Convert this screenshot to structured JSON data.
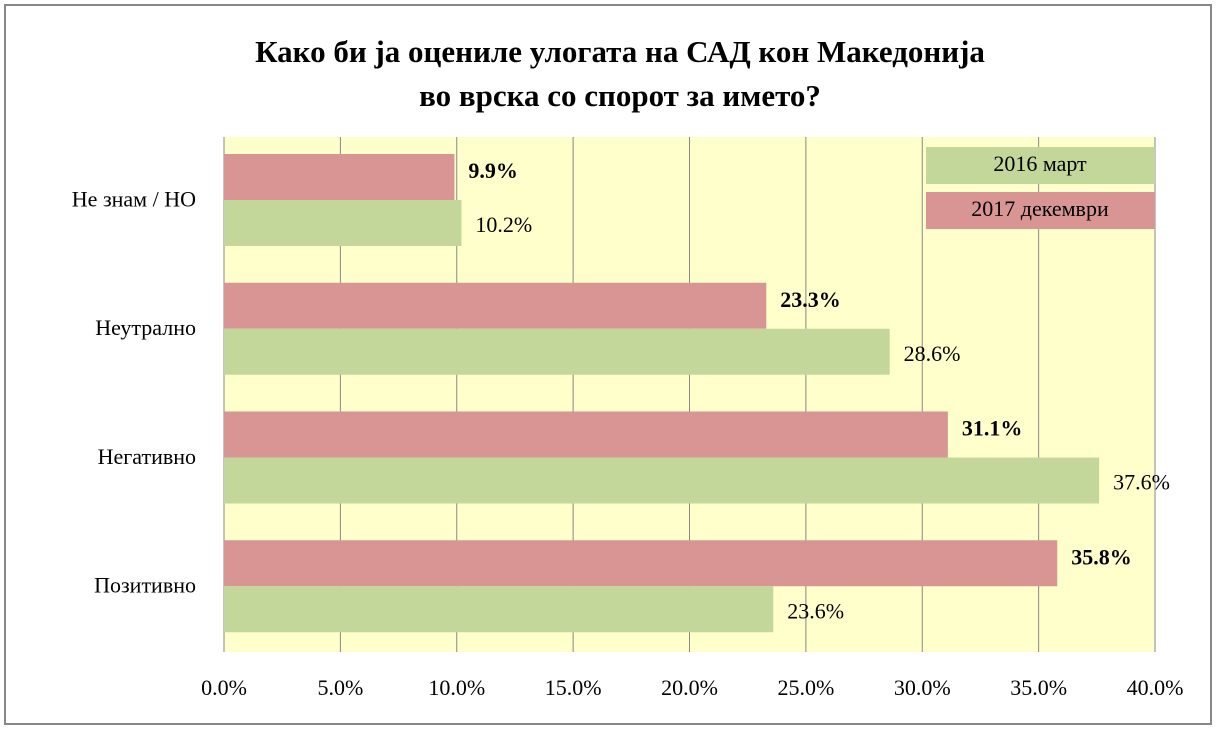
{
  "chart_data": {
    "type": "barh",
    "title": "Како би ја оцениле улогата на САД кон Македонија во врска со спорот за името?",
    "categories": [
      "Не знам / НО",
      "Неутрално",
      "Негативно",
      "Позитивно"
    ],
    "series": [
      {
        "name": "2016 март",
        "color": "#c4d79b",
        "values": [
          10.2,
          28.6,
          37.6,
          23.6
        ],
        "value_labels": [
          "10.2%",
          "28.6%",
          "37.6%",
          "23.6%"
        ]
      },
      {
        "name": "2017 декември",
        "color": "#d99594",
        "values": [
          9.9,
          23.3,
          31.1,
          35.8
        ],
        "value_labels": [
          "9.9%",
          "23.3%",
          "31.1%",
          "35.8%"
        ]
      }
    ],
    "xlim": [
      0,
      40
    ],
    "xticks": [
      {
        "value": 0,
        "label": "0.0%"
      },
      {
        "value": 5,
        "label": "5.0%"
      },
      {
        "value": 10,
        "label": "10.0%"
      },
      {
        "value": 15,
        "label": "15.0%"
      },
      {
        "value": 20,
        "label": "20.0%"
      },
      {
        "value": 25,
        "label": "25.0%"
      },
      {
        "value": 30,
        "label": "30.0%"
      },
      {
        "value": 35,
        "label": "35.0%"
      },
      {
        "value": 40,
        "label": "40.0%"
      }
    ],
    "grid": true,
    "legend": "upper right"
  }
}
